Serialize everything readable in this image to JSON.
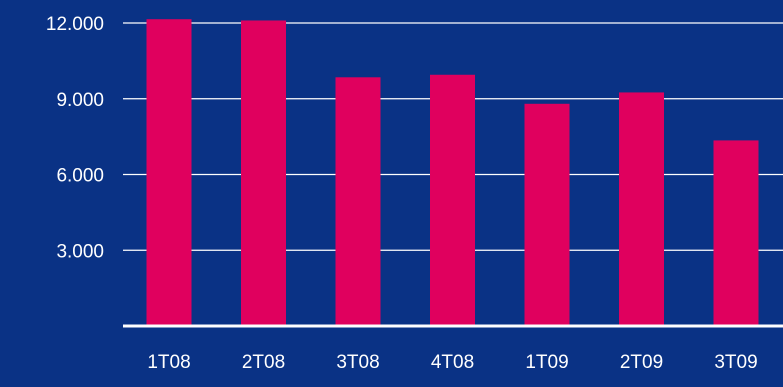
{
  "colors": {
    "background": "#0a3285",
    "bar": "#e0005e",
    "gridline": "#ffffff",
    "axis": "#ffffff",
    "text": "#ffffff"
  },
  "chart_data": {
    "type": "bar",
    "title": "",
    "xlabel": "",
    "ylabel": "",
    "categories": [
      "1T08",
      "2T08",
      "3T08",
      "4T08",
      "1T09",
      "2T09",
      "3T09"
    ],
    "values": [
      12150,
      12100,
      9850,
      9950,
      8800,
      9250,
      7350
    ],
    "ylim": [
      0,
      12000
    ],
    "yticks": [
      {
        "value": 3000,
        "label": "3.000"
      },
      {
        "value": 6000,
        "label": "6.000"
      },
      {
        "value": 9000,
        "label": "9.000"
      },
      {
        "value": 12000,
        "label": "12.000"
      }
    ],
    "grid": true,
    "legend": "none"
  }
}
